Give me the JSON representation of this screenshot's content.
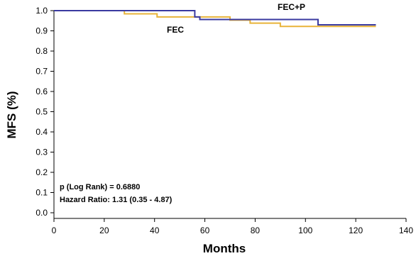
{
  "chart_data": {
    "type": "line",
    "step": true,
    "xlabel": "Months",
    "ylabel": "MFS (%)",
    "xlim": [
      0,
      140
    ],
    "ylim": [
      0.0,
      1.0
    ],
    "x_ticks": [
      "0",
      "20",
      "40",
      "60",
      "80",
      "100",
      "120",
      "140"
    ],
    "y_ticks": [
      "0.0",
      "0.1",
      "0.2",
      "0.3",
      "0.4",
      "0.5",
      "0.6",
      "0.7",
      "0.8",
      "0.9",
      "1.0"
    ],
    "grid": false,
    "series": [
      {
        "name": "FEC",
        "color": "#e8b339",
        "x": [
          0,
          28,
          41,
          55,
          70,
          78,
          90,
          128
        ],
        "y": [
          1.0,
          0.984,
          0.969,
          0.969,
          0.953,
          0.938,
          0.922,
          0.922
        ]
      },
      {
        "name": "FEC+P",
        "color": "#3a3aa0",
        "x": [
          0,
          56,
          58,
          105,
          128
        ],
        "y": [
          1.0,
          0.969,
          0.956,
          0.93,
          0.93
        ]
      }
    ],
    "annotations": {
      "p_value": "p (Log Rank) = 0.6880",
      "hazard_ratio": "Hazard Ratio: 1.31 (0.35 - 4.87)"
    }
  }
}
